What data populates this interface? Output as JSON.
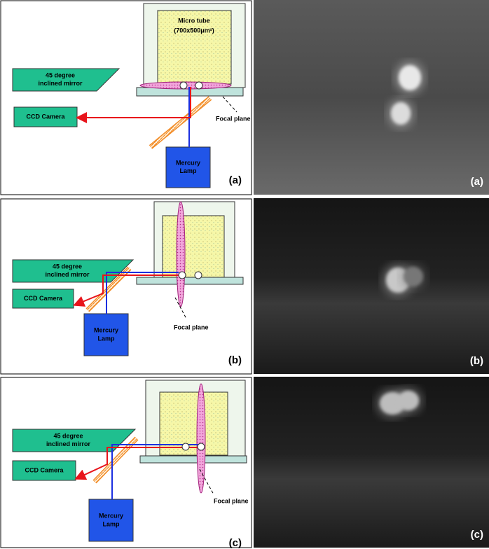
{
  "panels": [
    {
      "diagram": {
        "tube_label": "Micro tube",
        "tube_size": "(700x500μm²)",
        "mirror_label": [
          "45 degree",
          "inclined mirror"
        ],
        "camera_label": "CCD Camera",
        "lamp_label": [
          "Mercury",
          "Lamp"
        ],
        "focal_label": "Focal plane",
        "panel_label": "(a)"
      },
      "photo": {
        "panel_label": "(a)"
      }
    },
    {
      "diagram": {
        "mirror_label": [
          "45 degree",
          "inclined mirror"
        ],
        "camera_label": "CCD Camera",
        "lamp_label": [
          "Mercury",
          "Lamp"
        ],
        "focal_label": "Focal plane",
        "panel_label": "(b)"
      },
      "photo": {
        "panel_label": "(b)"
      }
    },
    {
      "diagram": {
        "mirror_label": [
          "45 degree",
          "inclined mirror"
        ],
        "camera_label": "CCD Camera",
        "lamp_label": [
          "Mercury",
          "Lamp"
        ],
        "focal_label": "Focal plane",
        "panel_label": "(c)"
      },
      "photo": {
        "panel_label": "(c)"
      }
    }
  ]
}
